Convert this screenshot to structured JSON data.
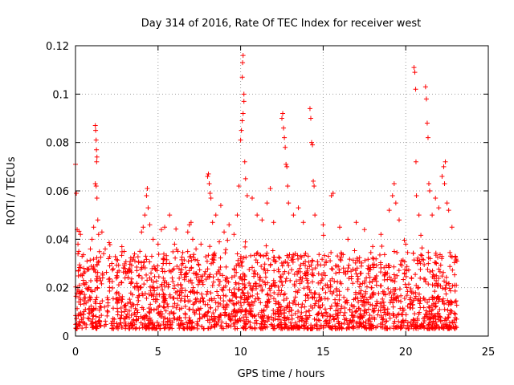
{
  "chart_data": {
    "type": "scatter",
    "title": "Day 314 of 2016, Rate Of TEC Index for receiver west",
    "xlabel": "GPS time / hours",
    "ylabel": "ROTI / TECUs",
    "xlim": [
      0,
      25
    ],
    "ylim": [
      0,
      0.12
    ],
    "x_ticks": [
      0,
      5,
      10,
      15,
      20,
      25
    ],
    "x_tick_labels": [
      "0",
      "5",
      "10",
      "15",
      "20",
      "25"
    ],
    "y_ticks": [
      0,
      0.02,
      0.04,
      0.06,
      0.08,
      0.1,
      0.12
    ],
    "y_tick_labels": [
      "0",
      "0.02",
      "0.04",
      "0.06",
      "0.08",
      "0.1",
      "0.12"
    ],
    "grid": true,
    "marker": "+",
    "color": "#ff0000",
    "series": [
      {
        "name": "ROTI",
        "points": [
          [
            0.0,
            0.071
          ],
          [
            0.05,
            0.059
          ],
          [
            0.1,
            0.044
          ],
          [
            0.15,
            0.038
          ],
          [
            0.2,
            0.035
          ],
          [
            0.3,
            0.042
          ],
          [
            0.4,
            0.033
          ],
          [
            0.5,
            0.028
          ],
          [
            0.7,
            0.031
          ],
          [
            0.9,
            0.036
          ],
          [
            1.0,
            0.04
          ],
          [
            1.1,
            0.045
          ],
          [
            1.2,
            0.087
          ],
          [
            1.22,
            0.085
          ],
          [
            1.25,
            0.081
          ],
          [
            1.27,
            0.077
          ],
          [
            1.3,
            0.074
          ],
          [
            1.28,
            0.072
          ],
          [
            1.2,
            0.063
          ],
          [
            1.25,
            0.062
          ],
          [
            1.3,
            0.057
          ],
          [
            1.35,
            0.048
          ],
          [
            1.4,
            0.042
          ],
          [
            1.6,
            0.043
          ],
          [
            1.8,
            0.036
          ],
          [
            2.0,
            0.032
          ],
          [
            2.2,
            0.03
          ],
          [
            2.5,
            0.025
          ],
          [
            2.8,
            0.022
          ],
          [
            3.0,
            0.024
          ],
          [
            3.3,
            0.027
          ],
          [
            3.6,
            0.031
          ],
          [
            3.9,
            0.035
          ],
          [
            4.0,
            0.043
          ],
          [
            4.1,
            0.045
          ],
          [
            4.2,
            0.05
          ],
          [
            4.3,
            0.058
          ],
          [
            4.35,
            0.061
          ],
          [
            4.4,
            0.053
          ],
          [
            4.5,
            0.046
          ],
          [
            4.7,
            0.04
          ],
          [
            5.0,
            0.038
          ],
          [
            5.2,
            0.044
          ],
          [
            5.4,
            0.045
          ],
          [
            5.7,
            0.05
          ],
          [
            6.0,
            0.038
          ],
          [
            6.2,
            0.035
          ],
          [
            6.5,
            0.03
          ],
          [
            6.8,
            0.043
          ],
          [
            6.9,
            0.046
          ],
          [
            7.0,
            0.047
          ],
          [
            7.1,
            0.04
          ],
          [
            7.3,
            0.036
          ],
          [
            7.6,
            0.038
          ],
          [
            8.0,
            0.066
          ],
          [
            8.05,
            0.067
          ],
          [
            8.1,
            0.063
          ],
          [
            8.15,
            0.059
          ],
          [
            8.2,
            0.057
          ],
          [
            8.3,
            0.047
          ],
          [
            8.5,
            0.05
          ],
          [
            8.8,
            0.054
          ],
          [
            9.0,
            0.043
          ],
          [
            9.3,
            0.046
          ],
          [
            9.6,
            0.042
          ],
          [
            9.8,
            0.05
          ],
          [
            9.9,
            0.062
          ],
          [
            10.0,
            0.081
          ],
          [
            10.05,
            0.085
          ],
          [
            10.1,
            0.089
          ],
          [
            10.15,
            0.092
          ],
          [
            10.2,
            0.1
          ],
          [
            10.1,
            0.107
          ],
          [
            10.15,
            0.116
          ],
          [
            10.12,
            0.113
          ],
          [
            10.2,
            0.097
          ],
          [
            10.25,
            0.072
          ],
          [
            10.3,
            0.065
          ],
          [
            10.4,
            0.058
          ],
          [
            10.7,
            0.057
          ],
          [
            11.0,
            0.05
          ],
          [
            11.3,
            0.048
          ],
          [
            11.6,
            0.055
          ],
          [
            11.8,
            0.061
          ],
          [
            12.0,
            0.047
          ],
          [
            12.5,
            0.09
          ],
          [
            12.55,
            0.092
          ],
          [
            12.6,
            0.086
          ],
          [
            12.65,
            0.082
          ],
          [
            12.7,
            0.078
          ],
          [
            12.75,
            0.071
          ],
          [
            12.8,
            0.07
          ],
          [
            12.85,
            0.062
          ],
          [
            12.9,
            0.055
          ],
          [
            13.2,
            0.05
          ],
          [
            13.5,
            0.053
          ],
          [
            13.8,
            0.047
          ],
          [
            14.2,
            0.094
          ],
          [
            14.25,
            0.09
          ],
          [
            14.3,
            0.08
          ],
          [
            14.35,
            0.079
          ],
          [
            14.4,
            0.064
          ],
          [
            14.45,
            0.062
          ],
          [
            14.5,
            0.05
          ],
          [
            15.0,
            0.046
          ],
          [
            15.5,
            0.058
          ],
          [
            15.6,
            0.059
          ],
          [
            16.0,
            0.045
          ],
          [
            16.5,
            0.04
          ],
          [
            17.0,
            0.047
          ],
          [
            17.5,
            0.044
          ],
          [
            18.0,
            0.037
          ],
          [
            18.5,
            0.042
          ],
          [
            19.0,
            0.052
          ],
          [
            19.2,
            0.058
          ],
          [
            19.3,
            0.063
          ],
          [
            19.4,
            0.055
          ],
          [
            19.6,
            0.048
          ],
          [
            20.0,
            0.038
          ],
          [
            20.5,
            0.111
          ],
          [
            20.55,
            0.109
          ],
          [
            20.6,
            0.102
          ],
          [
            20.62,
            0.072
          ],
          [
            20.65,
            0.058
          ],
          [
            20.8,
            0.05
          ],
          [
            21.2,
            0.103
          ],
          [
            21.25,
            0.098
          ],
          [
            21.3,
            0.088
          ],
          [
            21.35,
            0.082
          ],
          [
            21.4,
            0.063
          ],
          [
            21.45,
            0.06
          ],
          [
            21.6,
            0.05
          ],
          [
            21.8,
            0.057
          ],
          [
            22.0,
            0.053
          ],
          [
            22.2,
            0.066
          ],
          [
            22.3,
            0.07
          ],
          [
            22.4,
            0.072
          ],
          [
            22.35,
            0.063
          ],
          [
            22.5,
            0.055
          ],
          [
            22.6,
            0.052
          ],
          [
            22.8,
            0.045
          ],
          [
            23.0,
            0.033
          ],
          [
            23.1,
            0.031
          ]
        ],
        "band": {
          "description_values": "dense cloud of ROTI points between roughly 0.003 and 0.035 TECUs across 0–23.1 hours",
          "x_range": [
            0.0,
            23.1
          ],
          "typical_min": 0.003,
          "typical_max": 0.035
        }
      }
    ]
  }
}
